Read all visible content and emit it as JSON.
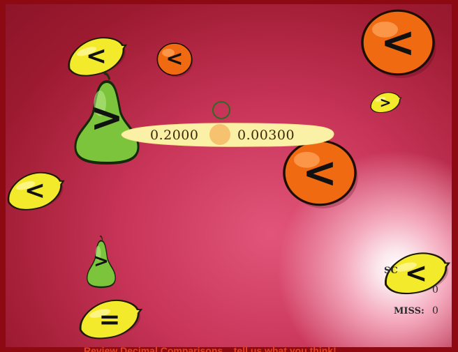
{
  "game": {
    "sentence": {
      "left_value": "0.2000",
      "right_value": "0.00300"
    },
    "fruits": [
      {
        "kind": "lemon",
        "symbol": "<"
      },
      {
        "kind": "orange",
        "symbol": "<"
      },
      {
        "kind": "orange",
        "symbol": "<"
      },
      {
        "kind": "pear",
        "symbol": ">"
      },
      {
        "kind": "lemon",
        "symbol": ">"
      },
      {
        "kind": "orange",
        "symbol": "<"
      },
      {
        "kind": "lemon",
        "symbol": "<"
      },
      {
        "kind": "pear",
        "symbol": ">"
      },
      {
        "kind": "lemon",
        "symbol": "="
      },
      {
        "kind": "lemon",
        "symbol": "<"
      }
    ],
    "score": {
      "score_label": "SC",
      "miss_label": "MISS:",
      "miss_value": "0",
      "score_value": "0"
    }
  },
  "footer": {
    "link_text": "Review Decimal Comparisons... tell us what you think!"
  },
  "colors": {
    "frame": "#8e0a12",
    "lemon": "#f3ea2c",
    "orange": "#f06a12",
    "pear": "#7cc43c",
    "footer_link": "#e8421c"
  },
  "icons": {
    "target": "circle-reticle-icon"
  }
}
